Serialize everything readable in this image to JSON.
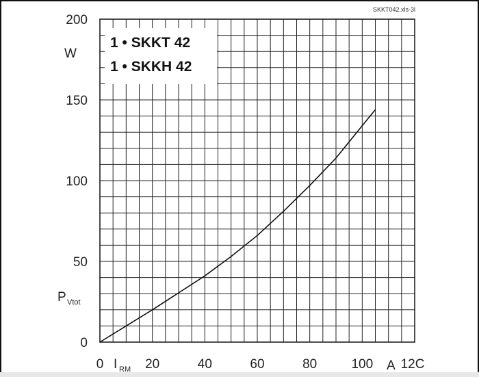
{
  "chart_data": {
    "type": "line",
    "file_id": "SKKT042.xls-3l",
    "legend": [
      "1 • SKKT 42",
      "1 • SKKH 42"
    ],
    "x_ticks": [
      "0",
      "20",
      "40",
      "60",
      "80",
      "100",
      "12C"
    ],
    "y_ticks": [
      "0",
      "50",
      "100",
      "150",
      "200"
    ],
    "xlabel": {
      "symbol": "I",
      "subscript": "RM",
      "unit": "A"
    },
    "ylabel": {
      "symbol": "P",
      "subscript": "Vtot",
      "unit": "W"
    },
    "xlim": [
      0,
      120
    ],
    "ylim": [
      0,
      200
    ],
    "grid": true,
    "series": [
      {
        "x": [
          0,
          10,
          20,
          30,
          40,
          50,
          60,
          70,
          80,
          90,
          100,
          105
        ],
        "y": [
          0,
          10,
          20,
          30.5,
          41,
          53,
          66,
          81,
          97,
          114,
          134,
          144
        ]
      }
    ]
  }
}
